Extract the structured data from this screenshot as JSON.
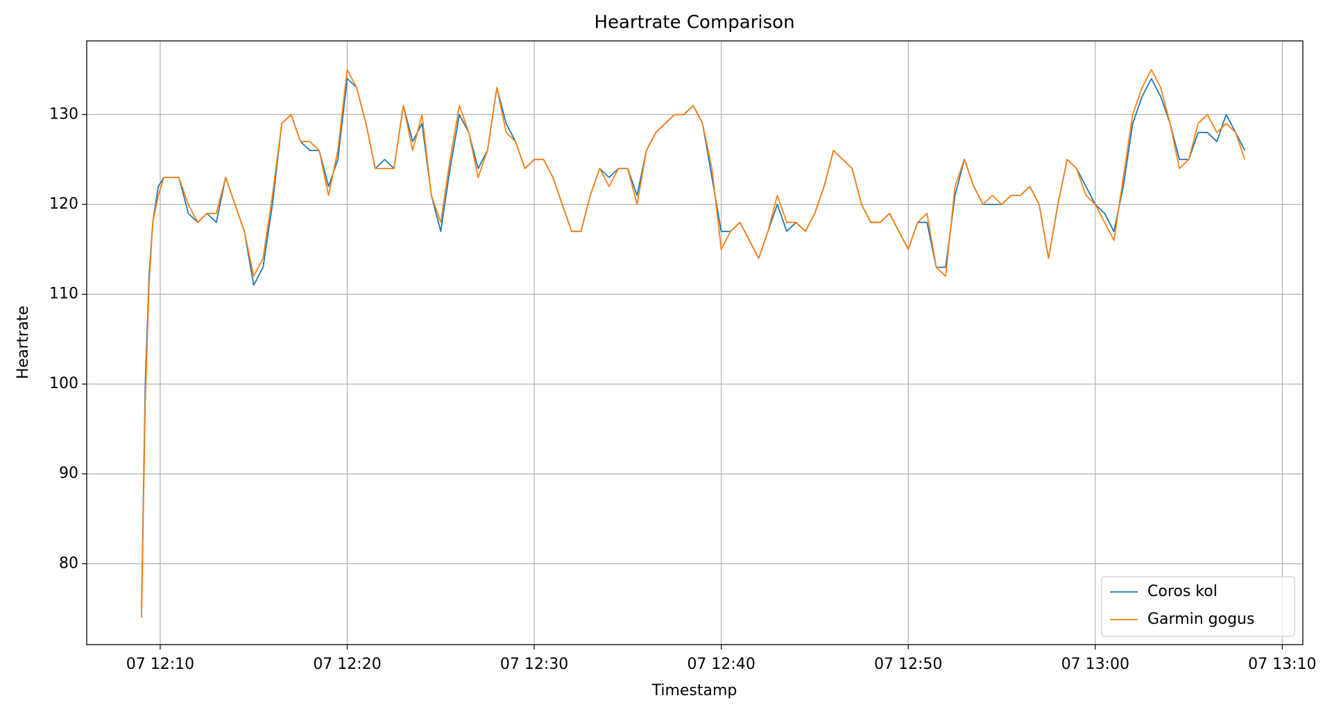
{
  "chart_data": {
    "type": "line",
    "title": "Heartrate Comparison",
    "x_label": "Timestamp",
    "y_label": "Heartrate",
    "x": [
      729,
      729.2,
      729.4,
      729.6,
      729.9,
      730.2,
      730.5,
      731,
      731.5,
      732,
      732.5,
      733,
      733.5,
      734,
      734.5,
      735,
      735.5,
      736,
      736.5,
      737,
      737.5,
      738,
      738.5,
      739,
      739.5,
      740,
      740.5,
      741,
      741.5,
      742,
      742.5,
      743,
      743.5,
      744,
      744.5,
      745,
      745.5,
      746,
      746.5,
      747,
      747.5,
      748,
      748.5,
      749,
      749.5,
      750,
      750.5,
      751,
      751.5,
      752,
      752.5,
      753,
      753.5,
      754,
      754.5,
      755,
      755.5,
      756,
      756.5,
      757,
      757.5,
      758,
      758.5,
      759,
      759.5,
      760,
      760.5,
      761,
      761.5,
      762,
      762.5,
      763,
      763.5,
      764,
      764.5,
      765,
      765.5,
      766,
      766.5,
      767,
      767.5,
      768,
      768.5,
      769,
      769.5,
      770,
      770.5,
      771,
      771.5,
      772,
      772.5,
      773,
      773.5,
      774,
      774.5,
      775,
      775.5,
      776,
      776.5,
      777,
      777.5,
      778,
      778.5,
      779,
      779.5,
      780,
      780.5,
      781,
      781.5,
      782,
      782.5,
      783,
      783.5,
      784,
      784.5,
      785,
      785.5,
      786,
      786.5,
      787,
      787.5,
      788
    ],
    "series": [
      {
        "name": "Coros kol",
        "color": "#1f77b4",
        "values": [
          75,
          100,
          112,
          118,
          122,
          123,
          123,
          123,
          119,
          118,
          119,
          118,
          123,
          120,
          117,
          111,
          113,
          120,
          129,
          130,
          127,
          126,
          126,
          122,
          125,
          134,
          133,
          129,
          124,
          125,
          124,
          131,
          127,
          129,
          121,
          117,
          124,
          130,
          128,
          124,
          126,
          133,
          129,
          127,
          124,
          125,
          125,
          123,
          120,
          117,
          117,
          121,
          124,
          123,
          124,
          124,
          121,
          126,
          128,
          129,
          130,
          130,
          131,
          129,
          123,
          117,
          117,
          118,
          116,
          114,
          117,
          120,
          117,
          118,
          117,
          119,
          122,
          126,
          125,
          124,
          120,
          118,
          118,
          119,
          117,
          115,
          118,
          118,
          113,
          113,
          121,
          125,
          122,
          120,
          120,
          120,
          121,
          121,
          122,
          120,
          114,
          120,
          125,
          124,
          122,
          120,
          119,
          117,
          122,
          129,
          132,
          134,
          132,
          129,
          125,
          125,
          128,
          128,
          127,
          130,
          128,
          126
        ]
      },
      {
        "name": "Garmin gogus",
        "color": "#ff7f0e",
        "values": [
          74,
          98,
          111,
          118,
          121,
          123,
          123,
          123,
          120,
          118,
          119,
          119,
          123,
          120,
          117,
          112,
          114,
          121,
          129,
          130,
          127,
          127,
          126,
          121,
          126,
          135,
          133,
          129,
          124,
          124,
          124,
          131,
          126,
          130,
          121,
          118,
          125,
          131,
          128,
          123,
          126,
          133,
          128,
          127,
          124,
          125,
          125,
          123,
          120,
          117,
          117,
          121,
          124,
          122,
          124,
          124,
          120,
          126,
          128,
          129,
          130,
          130,
          131,
          129,
          124,
          115,
          117,
          118,
          116,
          114,
          117,
          121,
          118,
          118,
          117,
          119,
          122,
          126,
          125,
          124,
          120,
          118,
          118,
          119,
          117,
          115,
          118,
          119,
          113,
          112,
          122,
          125,
          122,
          120,
          121,
          120,
          121,
          121,
          122,
          120,
          114,
          120,
          125,
          124,
          121,
          120,
          118,
          116,
          123,
          130,
          133,
          135,
          133,
          129,
          124,
          125,
          129,
          130,
          128,
          129,
          128,
          125
        ]
      }
    ],
    "xlim": [
      726.07,
      791.1
    ],
    "xticks": [
      {
        "value": 730,
        "label": "07 12:10"
      },
      {
        "value": 740,
        "label": "07 12:20"
      },
      {
        "value": 750,
        "label": "07 12:30"
      },
      {
        "value": 760,
        "label": "07 12:40"
      },
      {
        "value": 770,
        "label": "07 12:50"
      },
      {
        "value": 780,
        "label": "07 13:00"
      },
      {
        "value": 790,
        "label": "07 13:10"
      }
    ],
    "ylim": [
      71,
      138.2
    ],
    "yticks": [
      80,
      90,
      100,
      110,
      120,
      130
    ],
    "grid": true,
    "legend": "lower right"
  }
}
